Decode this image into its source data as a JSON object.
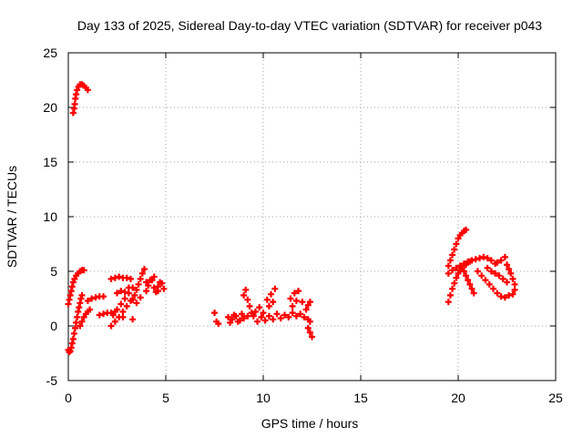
{
  "chart_data": {
    "type": "scatter",
    "title": "Day 133 of 2025, Sidereal Day-to-day VTEC variation (SDTVAR) for receiver p043",
    "xlabel": "GPS time / hours",
    "ylabel": "SDTVAR / TECUs",
    "xlim": [
      0,
      25
    ],
    "ylim": [
      -5,
      25
    ],
    "xticks": [
      "0",
      "5",
      "10",
      "15",
      "20",
      "25"
    ],
    "yticks": [
      "-5",
      "0",
      "5",
      "10",
      "15",
      "20",
      "25"
    ],
    "grid": true,
    "legend": "none",
    "marker": "plus",
    "color": "#ff0000",
    "series": [
      {
        "points": [
          [
            0.25,
            19.5
          ],
          [
            0.3,
            19.9
          ],
          [
            0.33,
            20.3
          ],
          [
            0.36,
            20.8
          ],
          [
            0.4,
            21.2
          ],
          [
            0.45,
            21.6
          ],
          [
            0.52,
            21.9
          ],
          [
            0.6,
            22.1
          ],
          [
            0.7,
            22.1
          ],
          [
            0.8,
            22.0
          ],
          [
            0.9,
            21.8
          ],
          [
            1.0,
            21.6
          ],
          [
            0.0,
            2.0
          ],
          [
            0.05,
            2.4
          ],
          [
            0.1,
            2.8
          ],
          [
            0.15,
            3.2
          ],
          [
            0.2,
            3.6
          ],
          [
            0.25,
            4.0
          ],
          [
            0.32,
            4.3
          ],
          [
            0.4,
            4.6
          ],
          [
            0.5,
            4.8
          ],
          [
            0.6,
            5.0
          ],
          [
            0.7,
            5.1
          ],
          [
            0.8,
            5.1
          ],
          [
            0.0,
            -2.2
          ],
          [
            0.05,
            -2.4
          ],
          [
            0.1,
            -2.3
          ],
          [
            0.15,
            -2.0
          ],
          [
            0.2,
            -1.6
          ],
          [
            0.25,
            -1.2
          ],
          [
            0.3,
            -0.7
          ],
          [
            0.35,
            -0.2
          ],
          [
            0.4,
            0.3
          ],
          [
            0.45,
            0.8
          ],
          [
            0.5,
            1.3
          ],
          [
            0.55,
            1.7
          ],
          [
            0.6,
            2.1
          ],
          [
            0.65,
            2.5
          ],
          [
            0.7,
            2.8
          ],
          [
            0.6,
            0.0
          ],
          [
            0.7,
            0.4
          ],
          [
            0.8,
            0.8
          ],
          [
            0.9,
            1.1
          ],
          [
            1.0,
            1.3
          ],
          [
            1.1,
            1.5
          ],
          [
            1.0,
            2.3
          ],
          [
            1.2,
            2.5
          ],
          [
            1.4,
            2.6
          ],
          [
            1.6,
            2.7
          ],
          [
            1.8,
            2.7
          ],
          [
            1.6,
            1.0
          ],
          [
            1.8,
            1.1
          ],
          [
            2.0,
            1.2
          ],
          [
            2.2,
            1.2
          ],
          [
            2.4,
            1.3
          ],
          [
            2.2,
            0.0
          ],
          [
            2.4,
            0.4
          ],
          [
            2.6,
            0.8
          ],
          [
            2.8,
            1.3
          ],
          [
            3.0,
            1.8
          ],
          [
            3.2,
            2.3
          ],
          [
            3.4,
            2.8
          ],
          [
            3.5,
            3.3
          ],
          [
            3.6,
            3.8
          ],
          [
            3.7,
            4.3
          ],
          [
            3.8,
            4.8
          ],
          [
            3.9,
            5.2
          ],
          [
            2.3,
            1.0
          ],
          [
            2.5,
            1.5
          ],
          [
            2.7,
            2.0
          ],
          [
            2.9,
            2.5
          ],
          [
            3.1,
            3.0
          ],
          [
            3.3,
            3.5
          ],
          [
            2.2,
            4.3
          ],
          [
            2.4,
            4.4
          ],
          [
            2.6,
            4.5
          ],
          [
            2.8,
            4.4
          ],
          [
            3.0,
            4.4
          ],
          [
            3.2,
            4.3
          ],
          [
            2.5,
            3.0
          ],
          [
            2.7,
            3.2
          ],
          [
            2.9,
            3.1
          ],
          [
            3.1,
            3.5
          ],
          [
            3.3,
            2.4
          ],
          [
            3.5,
            2.1
          ],
          [
            3.7,
            2.6
          ],
          [
            2.8,
            0.8
          ],
          [
            3.3,
            0.6
          ],
          [
            4.0,
            3.2
          ],
          [
            4.1,
            3.7
          ],
          [
            4.2,
            4.2
          ],
          [
            4.3,
            4.2
          ],
          [
            4.4,
            3.5
          ],
          [
            4.5,
            3.1
          ],
          [
            4.6,
            3.6
          ],
          [
            4.7,
            4.0
          ],
          [
            4.8,
            3.9
          ],
          [
            4.9,
            3.4
          ],
          [
            4.0,
            4.0
          ],
          [
            4.4,
            4.5
          ],
          [
            4.6,
            3.2
          ],
          [
            7.5,
            1.2
          ],
          [
            7.6,
            0.4
          ],
          [
            7.7,
            0.2
          ],
          [
            8.2,
            0.8
          ],
          [
            8.4,
            0.6
          ],
          [
            8.6,
            0.9
          ],
          [
            8.8,
            0.5
          ],
          [
            9.0,
            0.7
          ],
          [
            9.2,
            0.9
          ],
          [
            8.3,
            0.3
          ],
          [
            8.5,
            1.0
          ],
          [
            8.7,
            0.4
          ],
          [
            8.9,
            1.1
          ],
          [
            9.0,
            2.8
          ],
          [
            9.1,
            3.3
          ],
          [
            9.2,
            2.4
          ],
          [
            9.3,
            1.8
          ],
          [
            9.4,
            1.2
          ],
          [
            9.5,
            0.9
          ],
          [
            9.6,
            1.3
          ],
          [
            9.8,
            1.7
          ],
          [
            10.0,
            1.2
          ],
          [
            10.2,
            2.4
          ],
          [
            10.4,
            2.9
          ],
          [
            10.6,
            3.4
          ],
          [
            10.3,
            1.8
          ],
          [
            10.5,
            2.2
          ],
          [
            9.7,
            0.4
          ],
          [
            9.9,
            0.8
          ],
          [
            10.1,
            0.5
          ],
          [
            10.3,
            0.9
          ],
          [
            10.5,
            0.6
          ],
          [
            10.7,
            1.1
          ],
          [
            10.9,
            0.7
          ],
          [
            11.1,
            1.0
          ],
          [
            11.3,
            0.8
          ],
          [
            11.5,
            1.2
          ],
          [
            11.7,
            0.9
          ],
          [
            11.9,
            1.1
          ],
          [
            12.1,
            0.8
          ],
          [
            12.3,
            0.6
          ],
          [
            11.4,
            2.5
          ],
          [
            11.6,
            3.0
          ],
          [
            11.8,
            3.2
          ],
          [
            12.0,
            2.2
          ],
          [
            12.2,
            1.5
          ],
          [
            11.5,
            1.8
          ],
          [
            11.7,
            2.3
          ],
          [
            12.3,
            -0.2
          ],
          [
            12.4,
            -0.6
          ],
          [
            12.5,
            -1.0
          ],
          [
            12.4,
            0.4
          ],
          [
            12.3,
            1.9
          ],
          [
            12.4,
            2.2
          ],
          [
            19.5,
            5.5
          ],
          [
            19.6,
            6.0
          ],
          [
            19.7,
            6.5
          ],
          [
            19.8,
            7.0
          ],
          [
            19.9,
            7.5
          ],
          [
            20.0,
            8.0
          ],
          [
            20.1,
            8.3
          ],
          [
            20.2,
            8.5
          ],
          [
            20.3,
            8.7
          ],
          [
            20.4,
            8.8
          ],
          [
            19.5,
            2.2
          ],
          [
            19.6,
            2.8
          ],
          [
            19.7,
            3.4
          ],
          [
            19.8,
            3.9
          ],
          [
            19.9,
            4.4
          ],
          [
            20.0,
            4.8
          ],
          [
            20.1,
            5.1
          ],
          [
            20.2,
            5.3
          ],
          [
            20.4,
            5.6
          ],
          [
            20.6,
            5.9
          ],
          [
            19.5,
            4.8
          ],
          [
            19.7,
            5.1
          ],
          [
            19.9,
            5.3
          ],
          [
            20.1,
            5.5
          ],
          [
            20.3,
            5.7
          ],
          [
            20.5,
            5.9
          ],
          [
            20.7,
            6.0
          ],
          [
            20.9,
            6.1
          ],
          [
            21.1,
            6.2
          ],
          [
            21.3,
            6.3
          ],
          [
            21.5,
            6.2
          ],
          [
            21.7,
            6.0
          ],
          [
            21.9,
            5.7
          ],
          [
            20.3,
            5.0
          ],
          [
            20.4,
            4.6
          ],
          [
            20.5,
            4.2
          ],
          [
            20.6,
            3.8
          ],
          [
            20.7,
            3.4
          ],
          [
            20.8,
            3.0
          ],
          [
            21.0,
            5.0
          ],
          [
            21.2,
            4.6
          ],
          [
            21.4,
            4.2
          ],
          [
            21.6,
            3.8
          ],
          [
            21.8,
            3.4
          ],
          [
            22.0,
            3.0
          ],
          [
            22.2,
            2.7
          ],
          [
            22.4,
            2.6
          ],
          [
            22.6,
            2.8
          ],
          [
            21.5,
            5.3
          ],
          [
            21.7,
            5.0
          ],
          [
            21.9,
            4.8
          ],
          [
            22.1,
            4.6
          ],
          [
            22.3,
            4.3
          ],
          [
            22.5,
            4.0
          ],
          [
            22.0,
            5.8
          ],
          [
            22.2,
            6.0
          ],
          [
            22.4,
            6.3
          ],
          [
            22.5,
            5.6
          ],
          [
            22.6,
            5.2
          ],
          [
            22.7,
            4.8
          ],
          [
            22.8,
            4.3
          ],
          [
            22.9,
            3.8
          ],
          [
            22.9,
            3.3
          ],
          [
            22.8,
            2.9
          ]
        ]
      }
    ]
  }
}
